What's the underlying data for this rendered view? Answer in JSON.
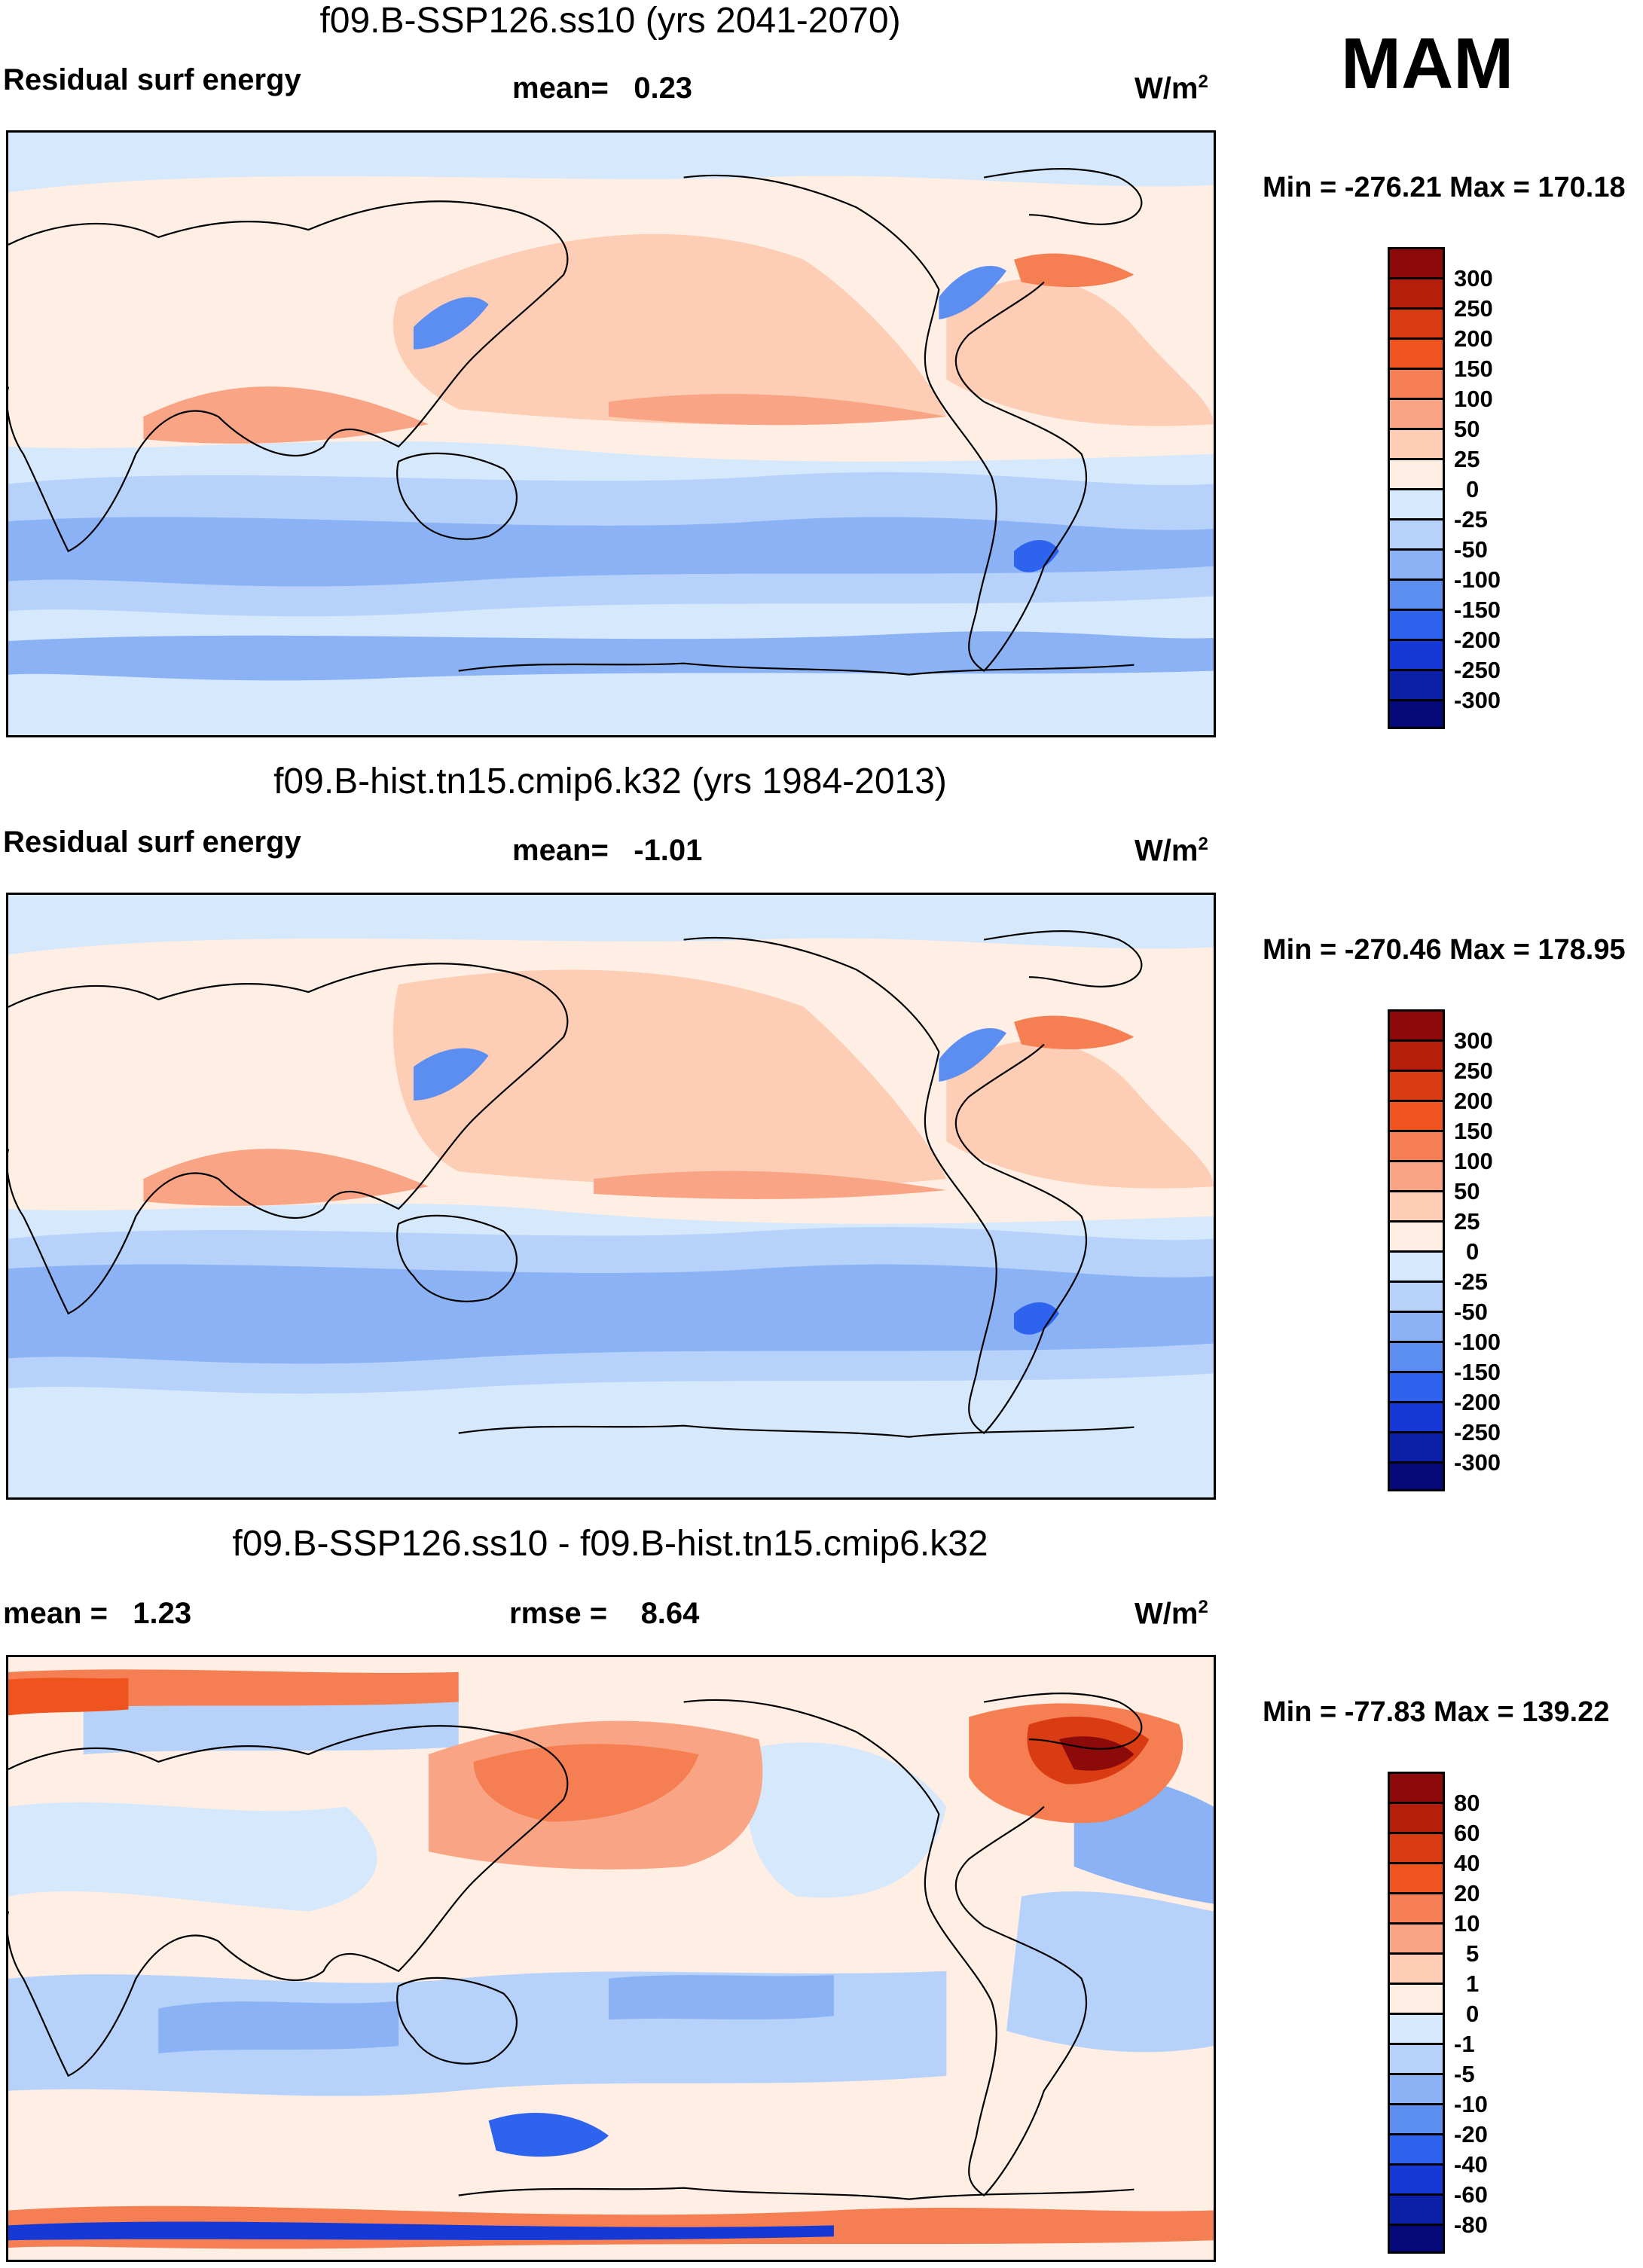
{
  "season": "MAM",
  "units_base": "W/m",
  "units_exp": "2",
  "panels": [
    {
      "title": "f09.B-SSP126.ss10 (yrs 2041-2070)",
      "left_label": "Residual surf energy",
      "center_label_key": "mean=",
      "center_label_val": "0.23",
      "minmax": "Min = -276.21 Max = 170.18",
      "levels": [
        "300",
        "250",
        "200",
        "150",
        "100",
        "50",
        "25",
        "0",
        "-25",
        "-50",
        "-100",
        "-150",
        "-200",
        "-250",
        "-300"
      ]
    },
    {
      "title": "f09.B-hist.tn15.cmip6.k32 (yrs 1984-2013)",
      "left_label": "Residual surf energy",
      "center_label_key": "mean=",
      "center_label_val": "-1.01",
      "minmax": "Min = -270.46 Max = 178.95",
      "levels": [
        "300",
        "250",
        "200",
        "150",
        "100",
        "50",
        "25",
        "0",
        "-25",
        "-50",
        "-100",
        "-150",
        "-200",
        "-250",
        "-300"
      ]
    },
    {
      "title": "f09.B-SSP126.ss10 - f09.B-hist.tn15.cmip6.k32",
      "left_label": "mean =   1.23",
      "center_label_key": "rmse =",
      "center_label_val": "8.64",
      "minmax": "Min = -77.83 Max = 139.22",
      "levels": [
        "80",
        "60",
        "40",
        "20",
        "10",
        "5",
        "1",
        "0",
        "-1",
        "-5",
        "-10",
        "-20",
        "-40",
        "-60",
        "-80"
      ]
    }
  ],
  "colors": {
    "scale16": [
      "#8c0a0a",
      "#b51e0a",
      "#d93b12",
      "#f0541e",
      "#f57f53",
      "#f9a585",
      "#fdcdb5",
      "#ffeee3",
      "#d6e8fb",
      "#b6d2fa",
      "#8cb2f6",
      "#5c8ef2",
      "#2e63ee",
      "#1638d6",
      "#0b1fa8",
      "#050a78"
    ]
  },
  "chart_data": [
    {
      "type": "heatmap",
      "title": "f09.B-SSP126.ss10 (yrs 2041-2070)",
      "variable": "Residual surf energy",
      "mean": 0.23,
      "min": -276.21,
      "max": 170.18,
      "units": "W/m2",
      "season": "MAM",
      "contour_levels": [
        -300,
        -250,
        -200,
        -150,
        -100,
        -50,
        -25,
        0,
        25,
        50,
        100,
        150,
        200,
        250,
        300
      ]
    },
    {
      "type": "heatmap",
      "title": "f09.B-hist.tn15.cmip6.k32 (yrs 1984-2013)",
      "variable": "Residual surf energy",
      "mean": -1.01,
      "min": -270.46,
      "max": 178.95,
      "units": "W/m2",
      "season": "MAM",
      "contour_levels": [
        -300,
        -250,
        -200,
        -150,
        -100,
        -50,
        -25,
        0,
        25,
        50,
        100,
        150,
        200,
        250,
        300
      ]
    },
    {
      "type": "heatmap",
      "title": "f09.B-SSP126.ss10 - f09.B-hist.tn15.cmip6.k32",
      "mean": 1.23,
      "rmse": 8.64,
      "min": -77.83,
      "max": 139.22,
      "units": "W/m2",
      "season": "MAM",
      "contour_levels": [
        -80,
        -60,
        -40,
        -20,
        -10,
        -5,
        -1,
        0,
        1,
        5,
        10,
        20,
        40,
        60,
        80
      ]
    }
  ]
}
